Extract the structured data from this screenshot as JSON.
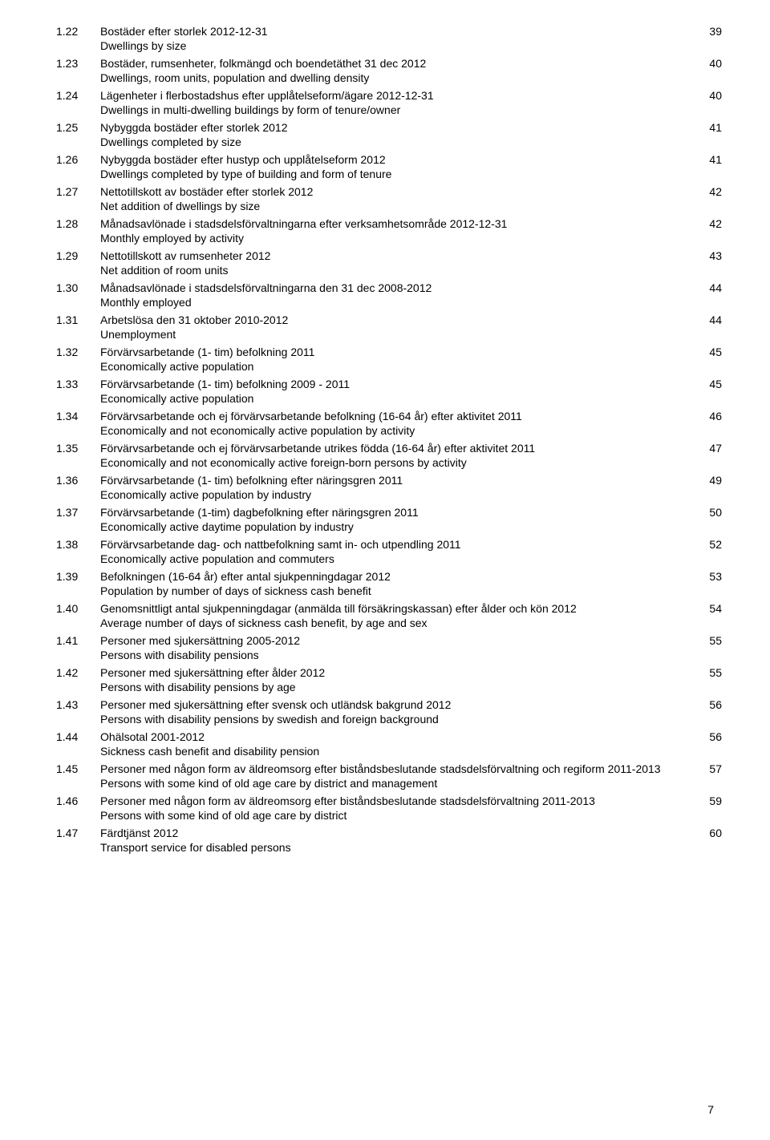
{
  "entries": [
    {
      "n": "1.22",
      "title": "Bostäder efter storlek 2012-12-31",
      "sub": "Dwellings by size",
      "page": "39"
    },
    {
      "n": "1.23",
      "title": "Bostäder, rumsenheter, folkmängd och boendetäthet 31 dec 2012",
      "sub": "Dwellings, room units, population and dwelling density",
      "page": "40"
    },
    {
      "n": "1.24",
      "title": "Lägenheter i flerbostadshus efter upplåtelseform/ägare 2012-12-31",
      "sub": "Dwellings in multi-dwelling buildings by form of tenure/owner",
      "page": "40"
    },
    {
      "n": "1.25",
      "title": "Nybyggda bostäder efter storlek 2012",
      "sub": "Dwellings completed by size",
      "page": "41"
    },
    {
      "n": "1.26",
      "title": "Nybyggda bostäder efter hustyp och upplåtelseform 2012",
      "sub": "Dwellings completed by type of building and form of tenure",
      "page": "41"
    },
    {
      "n": "1.27",
      "title": "Nettotillskott av bostäder efter storlek 2012",
      "sub": "Net addition of dwellings by size",
      "page": "42"
    },
    {
      "n": "1.28",
      "title": "Månadsavlönade i stadsdelsförvaltningarna efter verksamhetsområde 2012-12-31",
      "sub": "Monthly employed by activity",
      "page": "42"
    },
    {
      "n": "1.29",
      "title": "Nettotillskott av rumsenheter 2012",
      "sub": "Net addition of room units",
      "page": "43"
    },
    {
      "n": "1.30",
      "title": "Månadsavlönade i stadsdelsförvaltningarna den 31 dec 2008-2012",
      "sub": "Monthly employed",
      "page": "44"
    },
    {
      "n": "1.31",
      "title": "Arbetslösa den 31 oktober 2010-2012",
      "sub": "Unemployment",
      "page": "44"
    },
    {
      "n": "1.32",
      "title": "Förvärvsarbetande (1- tim) befolkning 2011",
      "sub": "Economically active population",
      "page": "45"
    },
    {
      "n": "1.33",
      "title": "Förvärvsarbetande (1- tim) befolkning 2009 - 2011",
      "sub": "Economically active population",
      "page": "45"
    },
    {
      "n": "1.34",
      "title": "Förvärvsarbetande och ej förvärvsarbetande befolkning (16-64 år) efter aktivitet 2011",
      "sub": "Economically and not economically active population by activity",
      "page": "46"
    },
    {
      "n": "1.35",
      "title": "Förvärvsarbetande och ej förvärvsarbetande utrikes födda (16-64 år) efter aktivitet 2011",
      "sub": "Economically and not economically active foreign-born persons by activity",
      "page": "47"
    },
    {
      "n": "1.36",
      "title": "Förvärvsarbetande (1- tim) befolkning efter näringsgren 2011",
      "sub": "Economically active population by industry",
      "page": "49"
    },
    {
      "n": "1.37",
      "title": "Förvärvsarbetande (1-tim) dagbefolkning efter näringsgren 2011",
      "sub": "Economically active daytime population by industry",
      "page": "50"
    },
    {
      "n": "1.38",
      "title": "Förvärvsarbetande dag- och nattbefolkning samt in- och utpendling 2011",
      "sub": "Economically active population and commuters",
      "page": "52"
    },
    {
      "n": "1.39",
      "title": "Befolkningen (16-64 år) efter antal sjukpenningdagar 2012",
      "sub": "Population by number of days of sickness cash benefit",
      "page": "53"
    },
    {
      "n": "1.40",
      "title": "Genomsnittligt antal sjukpenningdagar (anmälda till försäkringskassan) efter ålder och kön 2012",
      "sub": "Average number of days of sickness cash benefit, by age and sex",
      "page": "54"
    },
    {
      "n": "1.41",
      "title": "Personer med sjukersättning 2005-2012",
      "sub": "Persons with disability pensions",
      "page": "55"
    },
    {
      "n": "1.42",
      "title": "Personer med sjukersättning efter ålder 2012",
      "sub": "Persons with disability pensions by age",
      "page": "55"
    },
    {
      "n": "1.43",
      "title": "Personer med sjukersättning efter svensk och utländsk bakgrund 2012",
      "sub": "Persons with disability pensions by swedish and foreign background",
      "page": "56"
    },
    {
      "n": "1.44",
      "title": "Ohälsotal 2001-2012",
      "sub": "Sickness cash benefit and disability pension",
      "page": "56"
    },
    {
      "n": "1.45",
      "title": "Personer med någon form av äldreomsorg efter biståndsbeslutande stadsdelsförvaltning och regiform 2011-2013",
      "sub": "Persons with some kind of old age care by district and management",
      "page": "57"
    },
    {
      "n": "1.46",
      "title": "Personer med någon form av äldreomsorg efter biståndsbeslutande stadsdelsförvaltning 2011-2013",
      "sub": "Persons with some kind of old age care by district",
      "page": "59"
    },
    {
      "n": "1.47",
      "title": "Färdtjänst 2012",
      "sub": "Transport service for disabled persons",
      "page": "60"
    }
  ],
  "footer_page": "7"
}
